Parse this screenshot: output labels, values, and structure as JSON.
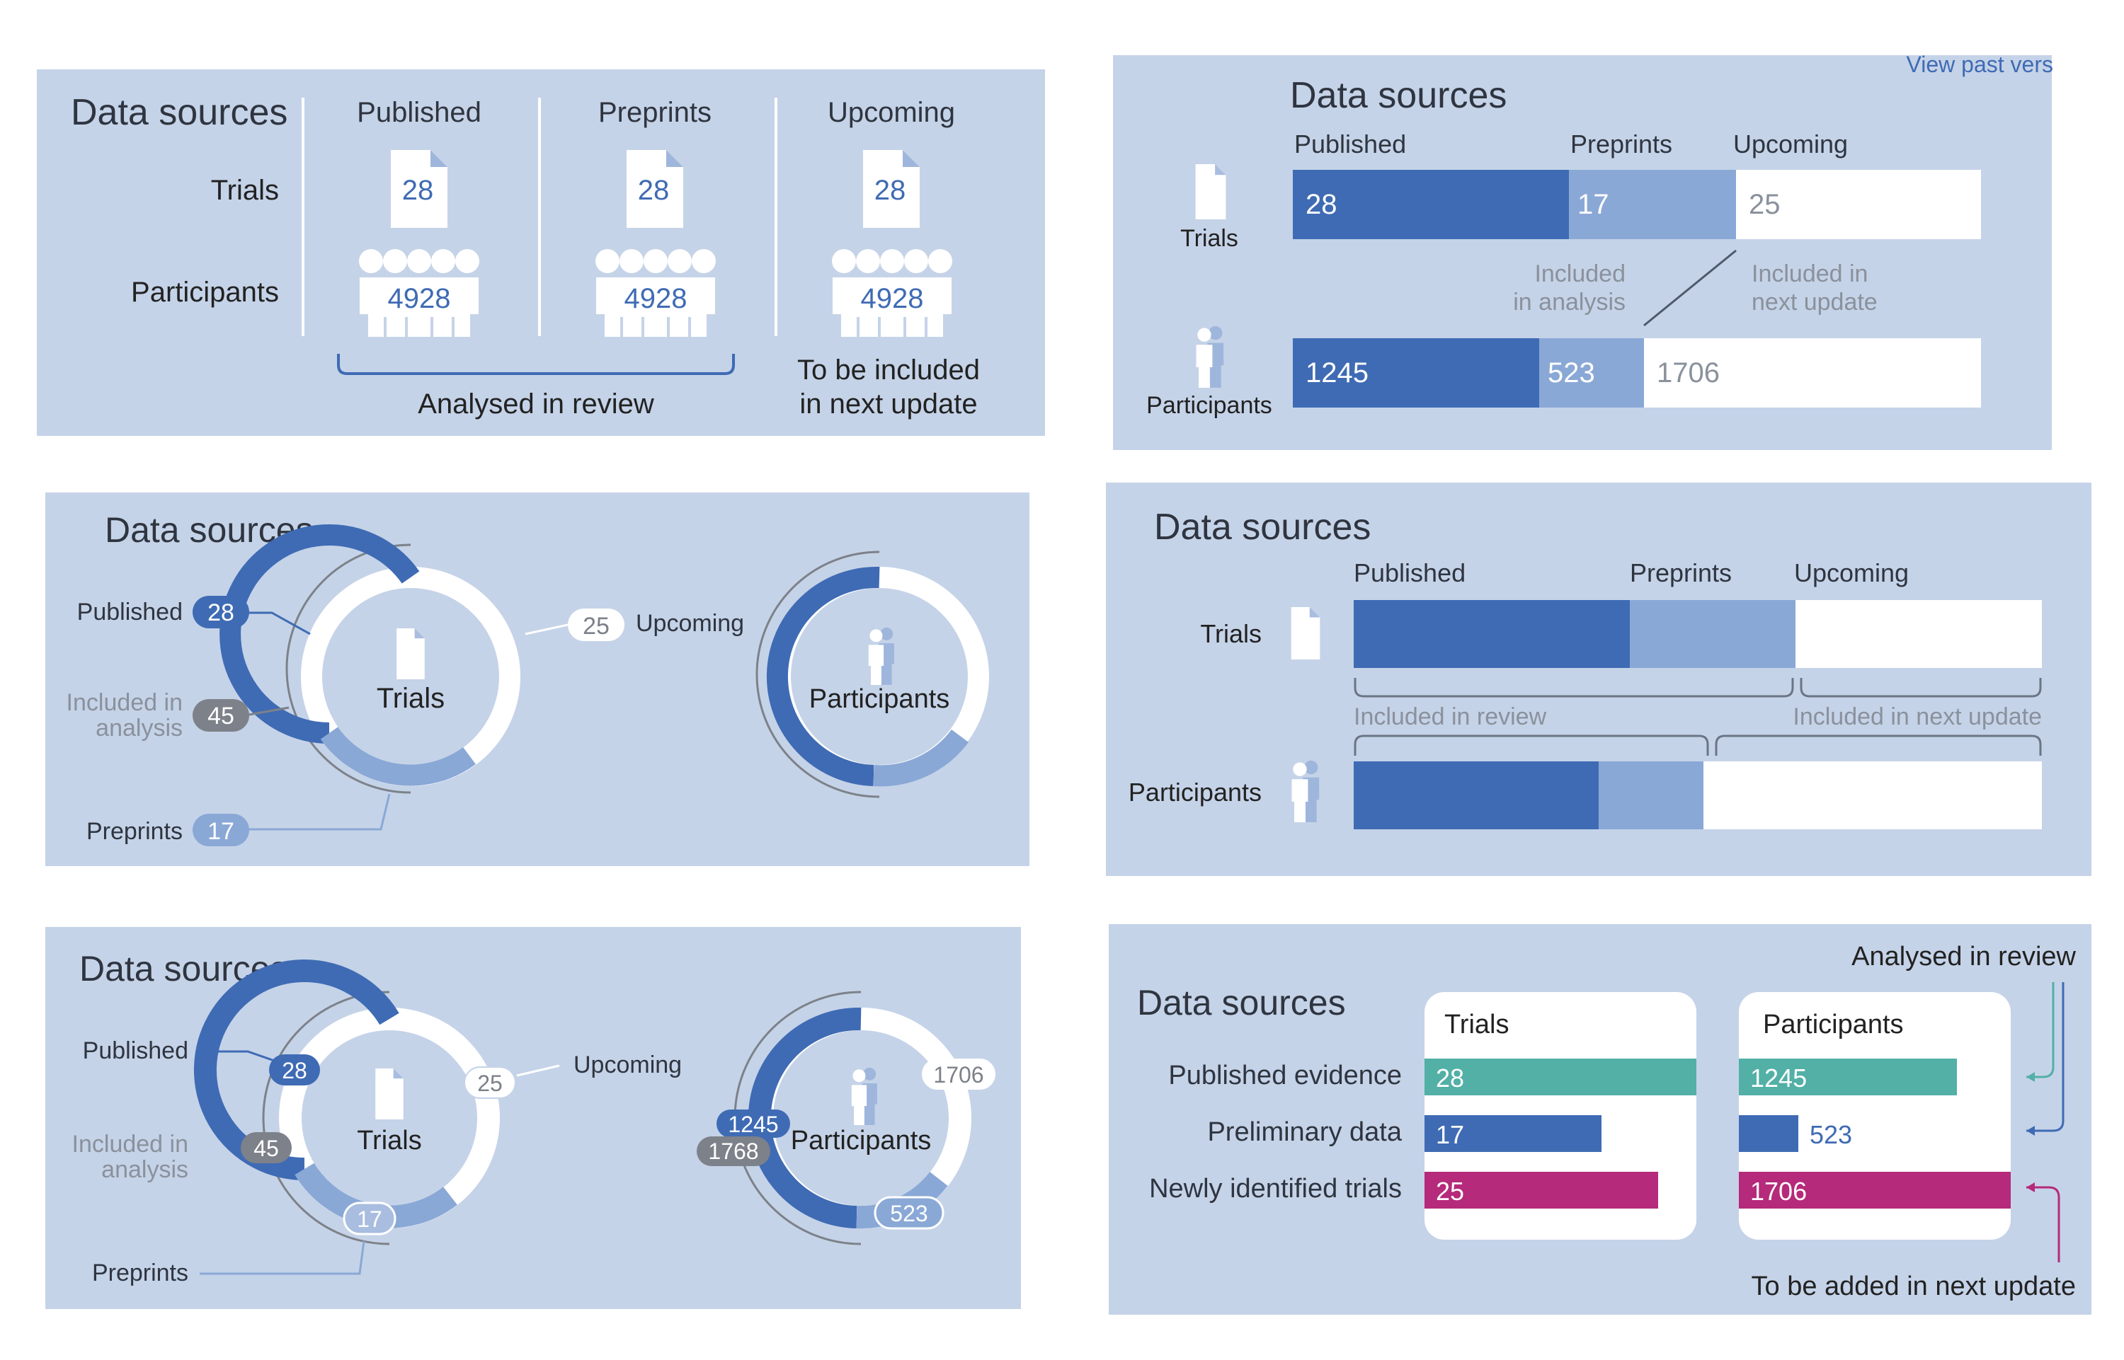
{
  "colors": {
    "panel_bg": "#c5d3e8",
    "published": "#3f6bb4",
    "preprints": "#8aa8d6",
    "upcoming": "#ffffff",
    "included_gray": "#7d8189",
    "link": "#3f6bb4",
    "teal": "#52b0a6",
    "magenta": "#b52a7a",
    "text": "#222222",
    "muted": "#8a919c"
  },
  "panel1": {
    "title": "Data sources",
    "columns": [
      "Published",
      "Preprints",
      "Upcoming"
    ],
    "row_trials": "Trials",
    "row_participants": "Participants",
    "trials_values": [
      "28",
      "28",
      "28"
    ],
    "participants_values": [
      "4928",
      "4928",
      "4928"
    ],
    "analysed_label": "Analysed in review",
    "next_update_line1": "To be included",
    "next_update_line2": "in next update"
  },
  "panel2": {
    "title": "Data sources",
    "view_past_link": "View past vers",
    "columns": [
      "Published",
      "Preprints",
      "Upcoming"
    ],
    "trials_label": "Trials",
    "participants_label": "Participants",
    "trials_values": [
      "28",
      "17",
      "25"
    ],
    "participants_values": [
      "1245",
      "523",
      "1706"
    ],
    "included_analysis_line1": "Included",
    "included_analysis_line2": "in analysis",
    "included_next_line1": "Included in",
    "included_next_line2": "next update"
  },
  "panel3": {
    "title": "Data sources",
    "published_label": "Published",
    "published_value": "28",
    "included_line1": "Included in",
    "included_line2": "analysis",
    "included_value": "45",
    "preprints_label": "Preprints",
    "preprints_value": "17",
    "upcoming_value": "25",
    "upcoming_label": "Upcoming",
    "trials_label": "Trials",
    "participants_label": "Participants"
  },
  "panel4": {
    "title": "Data sources",
    "columns": [
      "Published",
      "Preprints",
      "Upcoming"
    ],
    "trials_label": "Trials",
    "participants_label": "Participants",
    "included_review": "Included in review",
    "included_next": "Included in next update"
  },
  "panel5": {
    "title": "Data sources",
    "published_label": "Published",
    "published_value": "28",
    "included_line1": "Included in",
    "included_line2": "analysis",
    "included_value": "45",
    "preprints_label": "Preprints",
    "preprints_value": "17",
    "upcoming_label": "Upcoming",
    "upcoming_value": "25",
    "trials_label": "Trials",
    "participants_label": "Participants",
    "participants_published": "1245",
    "participants_included": "1768",
    "participants_preprints": "523",
    "participants_upcoming": "1706"
  },
  "panel6": {
    "title": "Data sources",
    "analysed_label": "Analysed in review",
    "next_update_label": "To be added in next update",
    "rows": [
      "Published evidence",
      "Preliminary data",
      "Newly identified trials"
    ],
    "trials_header": "Trials",
    "participants_header": "Participants",
    "trials_values": [
      "28",
      "17",
      "25"
    ],
    "participants_values": [
      "1245",
      "523",
      "1706"
    ]
  }
}
